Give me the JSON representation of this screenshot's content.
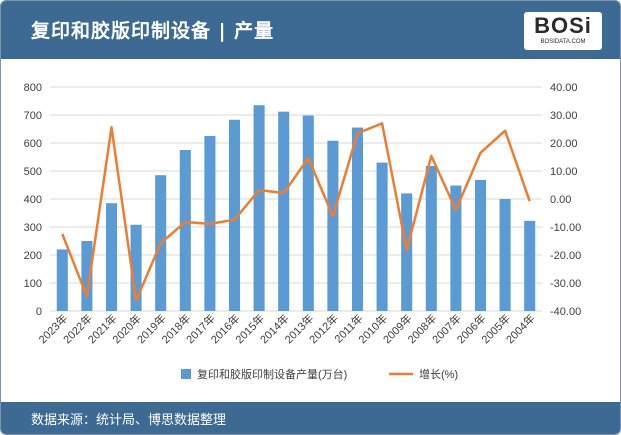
{
  "header": {
    "title": "复印和胶版印制设备 | 产量",
    "logo_text": "BOSi",
    "logo_sub": "BOSIDATA.COM"
  },
  "footer": {
    "source": "数据来源：统计局、博思数据整理"
  },
  "colors": {
    "header_bg": "#3c6a92",
    "bar": "#5b9bd5",
    "line": "#ed7d31",
    "grid": "#d9d9d9",
    "logo_accent": "#d9312b"
  },
  "chart_data": {
    "type": "bar+line",
    "categories": [
      "2023年",
      "2022年",
      "2021年",
      "2020年",
      "2019年",
      "2018年",
      "2017年",
      "2016年",
      "2015年",
      "2014年",
      "2013年",
      "2012年",
      "2011年",
      "2010年",
      "2009年",
      "2008年",
      "2007年",
      "2006年",
      "2005年",
      "2004年"
    ],
    "series": [
      {
        "name": "复印和胶版印制设备产量(万台)",
        "type": "bar",
        "axis": "left",
        "values": [
          220,
          250,
          385,
          308,
          485,
          575,
          625,
          683,
          735,
          712,
          698,
          608,
          655,
          530,
          420,
          518,
          448,
          468,
          400,
          322
        ]
      },
      {
        "name": "增长(%)",
        "type": "line",
        "axis": "right",
        "values": [
          -12.5,
          -34.8,
          25.6,
          -36.3,
          -15.8,
          -8.2,
          -8.9,
          -7.4,
          3.2,
          2.1,
          14.6,
          -6.1,
          23.5,
          27.0,
          -18.3,
          15.4,
          -3.9,
          16.5,
          24.4,
          -0.8
        ]
      }
    ],
    "y_left": {
      "min": 0,
      "max": 800,
      "step": 100,
      "ticks": [
        "0",
        "100",
        "200",
        "300",
        "400",
        "500",
        "600",
        "700",
        "800"
      ]
    },
    "y_right": {
      "min": -40,
      "max": 40,
      "step": 10,
      "ticks": [
        "-40.00",
        "-30.00",
        "-20.00",
        "-10.00",
        "0.00",
        "10.00",
        "20.00",
        "30.00",
        "40.00"
      ]
    },
    "legend": [
      "复印和胶版印制设备产量(万台)",
      "增长(%)"
    ],
    "legend_position": "bottom",
    "grid": true
  }
}
